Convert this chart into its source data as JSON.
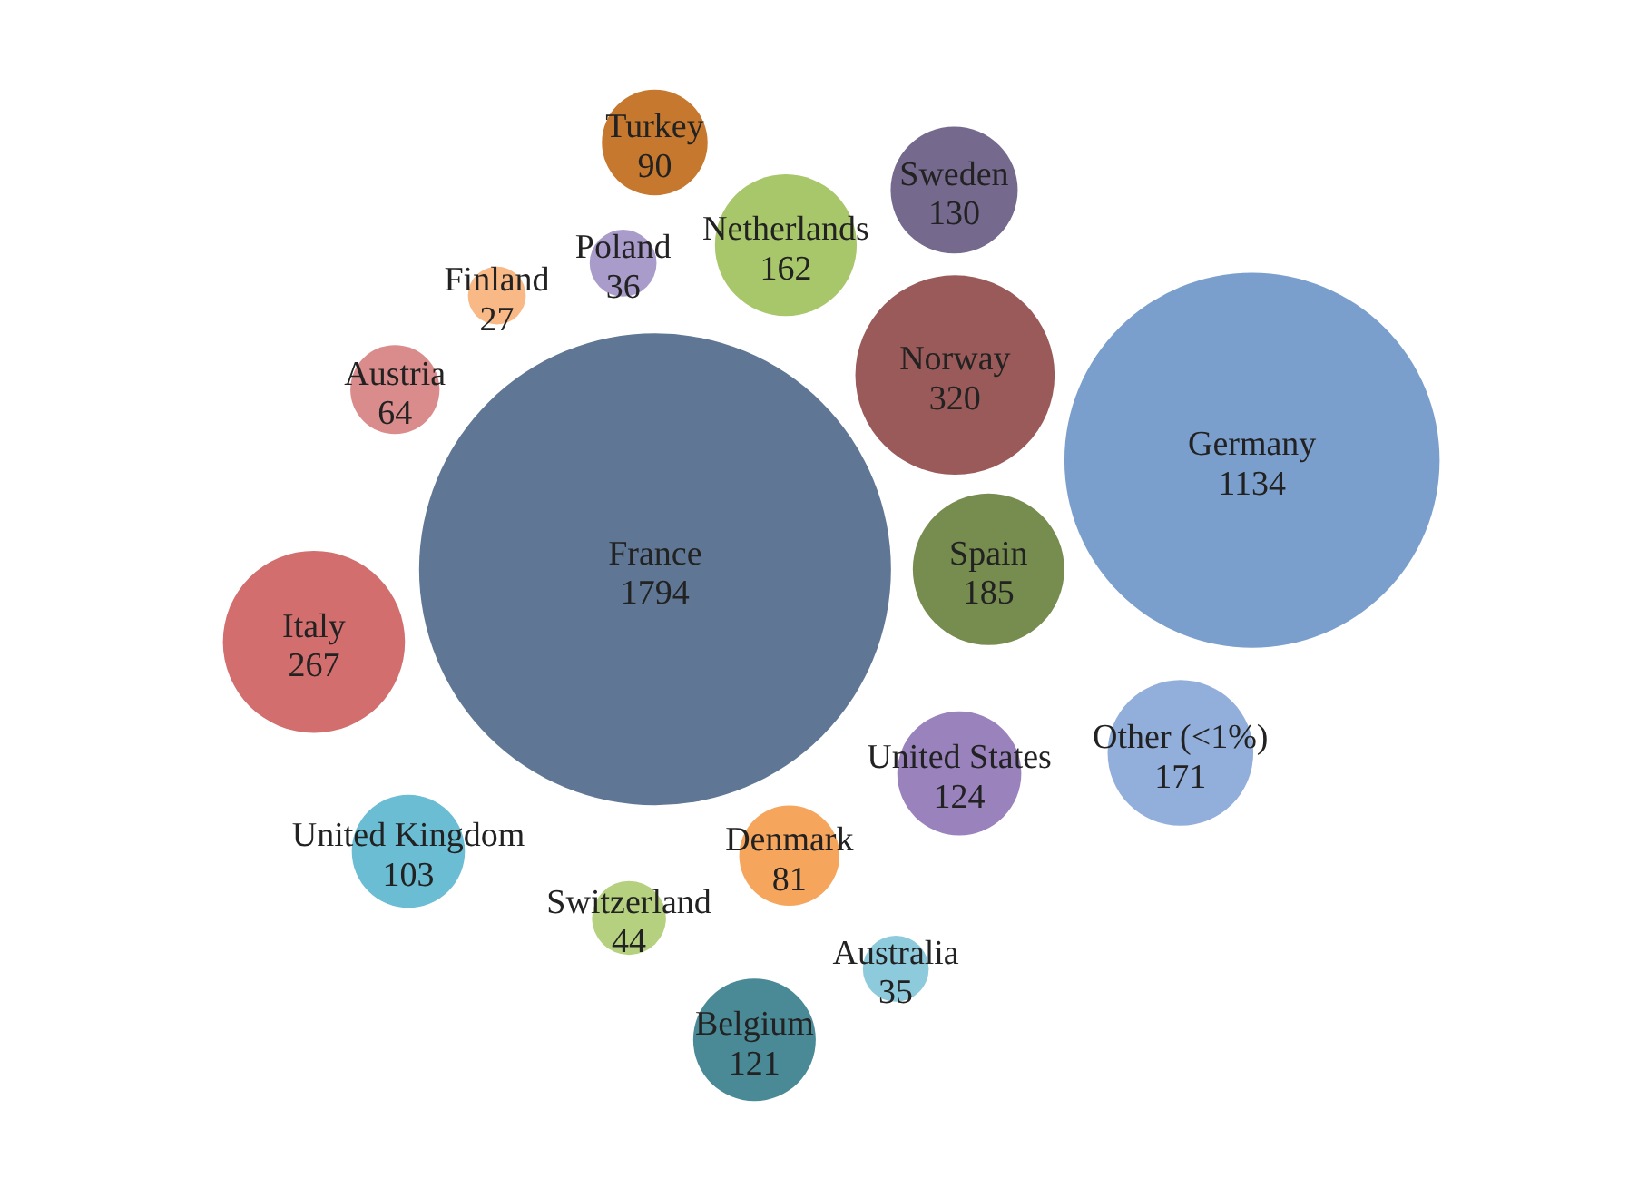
{
  "chart_data": {
    "type": "other",
    "categories": [
      "France",
      "Spain",
      "United States",
      "Norway",
      "Netherlands",
      "Denmark",
      "Poland",
      "Switzerland",
      "Germany",
      "Other (<1%)",
      "United Kingdom",
      "Finland",
      "Australia",
      "Sweden",
      "Austria",
      "Italy",
      "Belgium",
      "Turkey"
    ],
    "values": [
      1794,
      185,
      124,
      320,
      162,
      81,
      36,
      44,
      1134,
      171,
      103,
      27,
      35,
      130,
      64,
      267,
      121,
      90
    ],
    "colors": [
      "#5f7794",
      "#778c4f",
      "#9a82bd",
      "#9a5a59",
      "#a8c76a",
      "#f5a55c",
      "#a99ccb",
      "#b5d07f",
      "#7b9fcd",
      "#92aedb",
      "#6bbdd4",
      "#f8b987",
      "#8dcbdc",
      "#75698e",
      "#d98c8b",
      "#d26e6e",
      "#4a8996",
      "#c6782e"
    ],
    "data_labels": true
  }
}
